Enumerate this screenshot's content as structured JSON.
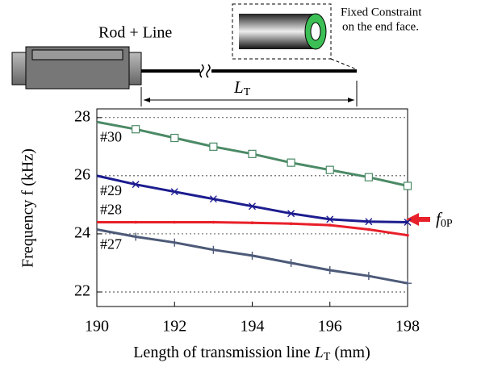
{
  "chart_data": {
    "type": "line",
    "annotations": {
      "rod_line": "Rod + Line",
      "constraint": [
        "Fixed Constraint",
        "on the end face."
      ],
      "length": {
        "text": "L",
        "sub": "T"
      },
      "f0p": {
        "text": "f",
        "sub": "0P"
      }
    },
    "x_label": {
      "prefix": "Length of transmission line ",
      "var": "L",
      "sub": "T",
      "suffix": " (mm)"
    },
    "y_label": "Frequency f (kHz)",
    "x": [
      190,
      191,
      192,
      193,
      194,
      195,
      196,
      197,
      198
    ],
    "series": [
      {
        "name": "#30",
        "color": "#4b8a66",
        "marker": "square",
        "values": [
          27.85,
          27.6,
          27.3,
          27.0,
          26.75,
          26.45,
          26.2,
          25.95,
          25.65
        ]
      },
      {
        "name": "#29",
        "color": "#1c1c8f",
        "marker": "x",
        "values": [
          26.0,
          25.7,
          25.45,
          25.2,
          24.95,
          24.7,
          24.5,
          24.42,
          24.4
        ]
      },
      {
        "name": "#28",
        "color": "#e8202a",
        "marker": "dot",
        "values": [
          24.4,
          24.4,
          24.4,
          24.4,
          24.38,
          24.35,
          24.3,
          24.15,
          23.95
        ]
      },
      {
        "name": "#27",
        "color": "#4d5a78",
        "marker": "plus",
        "values": [
          24.15,
          23.9,
          23.7,
          23.45,
          23.25,
          23.0,
          22.75,
          22.55,
          22.3
        ]
      }
    ],
    "xlim": [
      190,
      198
    ],
    "xticks": [
      190,
      192,
      194,
      196,
      198
    ],
    "ylim": [
      21.5,
      28.3
    ],
    "yticks": [
      22,
      24,
      26,
      28
    ],
    "grid": true
  }
}
